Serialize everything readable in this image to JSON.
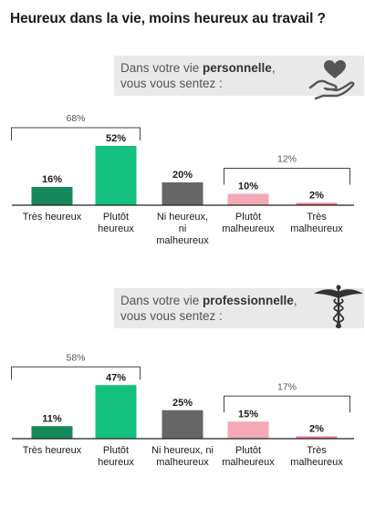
{
  "title": "Heureux dans la vie, moins heureux au travail ?",
  "panels": [
    {
      "question_line1": "Dans votre vie ",
      "question_bold": "personnelle",
      "question_line1_end": ",",
      "question_line2": "vous vous sentez :",
      "icon": "heart-hand-icon",
      "group_labels": [
        "68%",
        "12%"
      ]
    },
    {
      "question_line1": "Dans votre vie ",
      "question_bold": "professionnelle",
      "question_line1_end": ",",
      "question_line2": "vous vous sentez :",
      "icon": "caduceus-icon",
      "group_labels": [
        "58%",
        "17%"
      ]
    }
  ],
  "colors": {
    "very_happy": "#17875c",
    "happy": "#13c07f",
    "neutral": "#666666",
    "unhappy": "#f3a9b6",
    "very_unhappy": "#f07a8c",
    "question_bg": "#e9e9e9"
  },
  "chart_data": [
    {
      "type": "bar",
      "title": "Dans votre vie personnelle, vous vous sentez :",
      "categories": [
        "Très heureux",
        "Plutôt heureux",
        "Ni heureux, ni malheureux",
        "Plutôt malheureux",
        "Très malheureux"
      ],
      "category_lines": [
        [
          "Très heureux"
        ],
        [
          "Plutôt",
          "heureux"
        ],
        [
          "Ni heureux,",
          "ni",
          "malheureux"
        ],
        [
          "Plutôt",
          "malheureux"
        ],
        [
          "Très",
          "malheureux"
        ]
      ],
      "values": [
        16,
        52,
        20,
        10,
        2
      ],
      "value_labels": [
        "16%",
        "52%",
        "20%",
        "10%",
        "2%"
      ],
      "groups": [
        {
          "label": "68%",
          "categories": [
            "Très heureux",
            "Plutôt heureux"
          ],
          "value": 68
        },
        {
          "label": "12%",
          "categories": [
            "Plutôt malheureux",
            "Très malheureux"
          ],
          "value": 12
        }
      ],
      "ylim": [
        0,
        60
      ],
      "grid": false
    },
    {
      "type": "bar",
      "title": "Dans votre vie professionnelle, vous vous sentez :",
      "categories": [
        "Très heureux",
        "Plutôt heureux",
        "Ni heureux, ni malheureux",
        "Plutôt malheureux",
        "Très malheureux"
      ],
      "category_lines": [
        [
          "Très heureux"
        ],
        [
          "Plutôt",
          "heureux"
        ],
        [
          "Ni heureux, ni",
          "malheureux"
        ],
        [
          "Plutôt",
          "malheureux"
        ],
        [
          "Très",
          "malheureux"
        ]
      ],
      "values": [
        11,
        47,
        25,
        15,
        2
      ],
      "value_labels": [
        "11%",
        "47%",
        "25%",
        "15%",
        "2%"
      ],
      "groups": [
        {
          "label": "58%",
          "categories": [
            "Très heureux",
            "Plutôt heureux"
          ],
          "value": 58
        },
        {
          "label": "17%",
          "categories": [
            "Plutôt malheureux",
            "Très malheureux"
          ],
          "value": 17
        }
      ],
      "ylim": [
        0,
        60
      ],
      "grid": false
    }
  ]
}
